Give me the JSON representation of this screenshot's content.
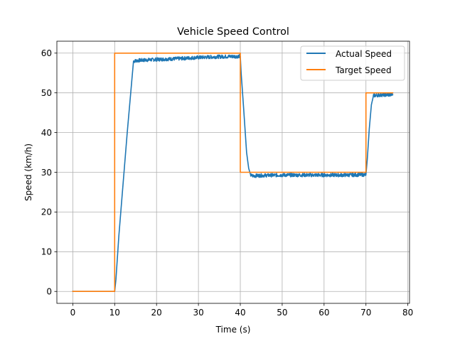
{
  "chart_data": {
    "type": "line",
    "title": "Vehicle Speed Control",
    "xlabel": "Time (s)",
    "ylabel": "Speed (km/h)",
    "xlim": [
      -3.8,
      80.4
    ],
    "ylim": [
      -3,
      63
    ],
    "xticks": [
      0,
      10,
      20,
      30,
      40,
      50,
      60,
      70,
      80
    ],
    "yticks": [
      0,
      10,
      20,
      30,
      40,
      50,
      60
    ],
    "grid": true,
    "legend_position": "top-right",
    "series": [
      {
        "name": "Actual Speed",
        "color": "#1f77b4",
        "noisy": true,
        "x": [
          0,
          10,
          10.3,
          11,
          12,
          13,
          14,
          14.5,
          16,
          20,
          25,
          30,
          35,
          40,
          40.2,
          40.8,
          41.5,
          42,
          42.5,
          43,
          45,
          50,
          55,
          60,
          65,
          70,
          70.3,
          70.8,
          71.3,
          71.8,
          72.5,
          74,
          76.4
        ],
        "y": [
          0,
          0,
          3,
          14,
          27,
          40,
          52,
          58,
          58.2,
          58.4,
          58.6,
          58.9,
          59.1,
          59.2,
          55,
          46,
          35,
          31,
          29.2,
          29.1,
          29.2,
          29.3,
          29.3,
          29.3,
          29.3,
          29.4,
          33,
          41,
          47,
          49.3,
          49.4,
          49.5,
          49.5
        ]
      },
      {
        "name": "Target Speed",
        "color": "#ff7f0e",
        "noisy": false,
        "x": [
          0,
          10,
          10,
          40,
          40,
          70,
          70,
          76.4
        ],
        "y": [
          0,
          0,
          60,
          60,
          30,
          30,
          50,
          50
        ]
      }
    ]
  }
}
